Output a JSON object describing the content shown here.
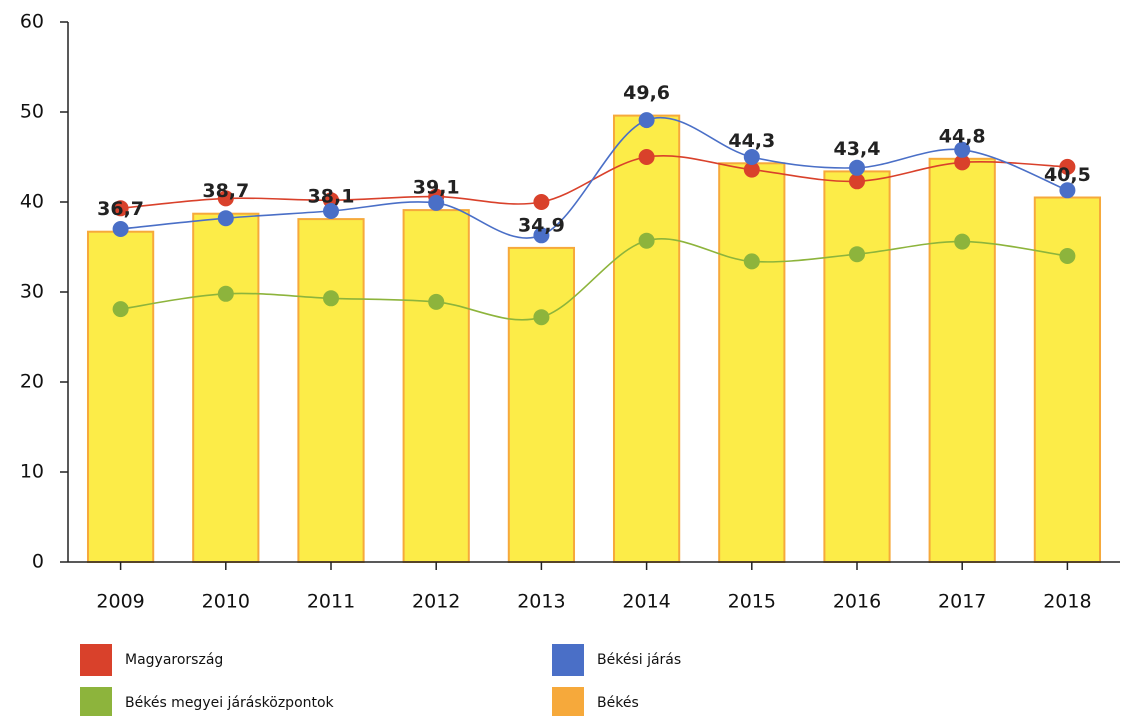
{
  "chart_data": {
    "type": "bar-line",
    "categories": [
      "2009",
      "2010",
      "2011",
      "2012",
      "2013",
      "2014",
      "2015",
      "2016",
      "2017",
      "2018"
    ],
    "series": [
      {
        "name": "Magyarország",
        "type": "line",
        "color": "#d9412b",
        "values": [
          39.3,
          40.4,
          40.2,
          40.6,
          40.0,
          45.0,
          43.6,
          42.3,
          44.4,
          43.9
        ]
      },
      {
        "name": "Békési járás",
        "type": "line",
        "color": "#4a6fc7",
        "values": [
          37.0,
          38.2,
          39.0,
          39.9,
          36.3,
          49.1,
          45.0,
          43.8,
          45.8,
          41.3
        ]
      },
      {
        "name": "Békés megyei járásközpontok",
        "type": "line",
        "color": "#8db43c",
        "values": [
          28.1,
          29.8,
          29.3,
          28.9,
          27.2,
          35.7,
          33.4,
          34.2,
          35.6,
          34.0
        ]
      },
      {
        "name": "Békés",
        "type": "bar",
        "color": "#fcec48",
        "edge_color": "#f6a93b",
        "values": [
          36.7,
          38.7,
          38.1,
          39.1,
          34.9,
          49.6,
          44.3,
          43.4,
          44.8,
          40.5
        ],
        "value_labels": [
          "36,7",
          "38,7",
          "38,1",
          "39,1",
          "34,9",
          "49,6",
          "44,3",
          "43,4",
          "44,8",
          "40,5"
        ]
      }
    ],
    "ylim": [
      0,
      60
    ],
    "yticks": [
      0,
      10,
      20,
      30,
      40,
      50,
      60
    ],
    "grid": false
  }
}
